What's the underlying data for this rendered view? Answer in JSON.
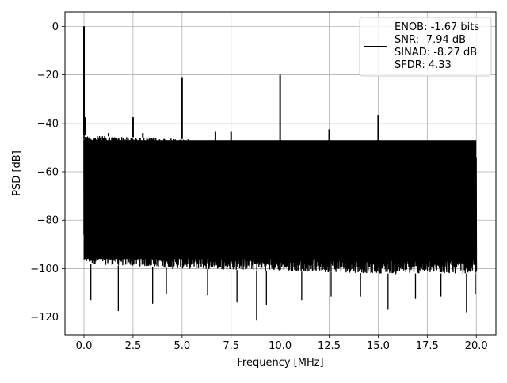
{
  "chart_data": {
    "type": "line",
    "xlabel": "Frequency [MHz]",
    "ylabel": "PSD [dB]",
    "xlim": [
      -0.97,
      21.0
    ],
    "ylim": [
      -127.3,
      6.0
    ],
    "grid": true,
    "xticks": [
      0.0,
      2.5,
      5.0,
      7.5,
      10.0,
      12.5,
      15.0,
      17.5,
      20.0
    ],
    "xtick_labels": [
      "0.0",
      "2.5",
      "5.0",
      "7.5",
      "10.0",
      "12.5",
      "15.0",
      "17.5",
      "20.0"
    ],
    "yticks": [
      0,
      -20,
      -40,
      -60,
      -80,
      -100,
      -120
    ],
    "ytick_labels": [
      "0",
      "−20",
      "−40",
      "−60",
      "−80",
      "−100",
      "−120"
    ],
    "legend": {
      "placement": "upper right",
      "lines": [
        "ENOB: -1.67 bits",
        "SNR: -7.94 dB",
        "SINAD: -8.27 dB",
        "SFDR: 4.33"
      ]
    },
    "series": [
      {
        "color": "#000000",
        "noise_band": {
          "x": [
            0.0,
            5.0,
            10.0,
            15.0,
            20.0
          ],
          "upper": [
            -45,
            -46.5,
            -48.5,
            -50,
            -51.5
          ],
          "lower": [
            -98,
            -100,
            -101,
            -102,
            -102
          ]
        },
        "spur_peaks": [
          {
            "x": 0.0,
            "y": 0.0
          },
          {
            "x": 0.05,
            "y": -37.5
          },
          {
            "x": 1.25,
            "y": -44.0
          },
          {
            "x": 2.5,
            "y": -37.5
          },
          {
            "x": 3.0,
            "y": -44.0
          },
          {
            "x": 5.0,
            "y": -21.0
          },
          {
            "x": 6.7,
            "y": -43.5
          },
          {
            "x": 7.5,
            "y": -43.5
          },
          {
            "x": 10.0,
            "y": -20.0
          },
          {
            "x": 12.5,
            "y": -42.5
          },
          {
            "x": 15.0,
            "y": -36.5
          },
          {
            "x": 17.5,
            "y": -47.5
          }
        ],
        "deep_minima": [
          {
            "x": 0.35,
            "y": -113.0
          },
          {
            "x": 1.75,
            "y": -117.5
          },
          {
            "x": 3.5,
            "y": -114.5
          },
          {
            "x": 4.2,
            "y": -110.5
          },
          {
            "x": 6.3,
            "y": -111.0
          },
          {
            "x": 7.8,
            "y": -114.0
          },
          {
            "x": 8.8,
            "y": -121.5
          },
          {
            "x": 9.3,
            "y": -115.0
          },
          {
            "x": 11.1,
            "y": -113.0
          },
          {
            "x": 12.6,
            "y": -111.5
          },
          {
            "x": 14.1,
            "y": -111.5
          },
          {
            "x": 15.5,
            "y": -117.0
          },
          {
            "x": 16.9,
            "y": -112.5
          },
          {
            "x": 18.2,
            "y": -111.5
          },
          {
            "x": 19.5,
            "y": -118.0
          },
          {
            "x": 19.95,
            "y": -110.5
          }
        ]
      }
    ]
  }
}
